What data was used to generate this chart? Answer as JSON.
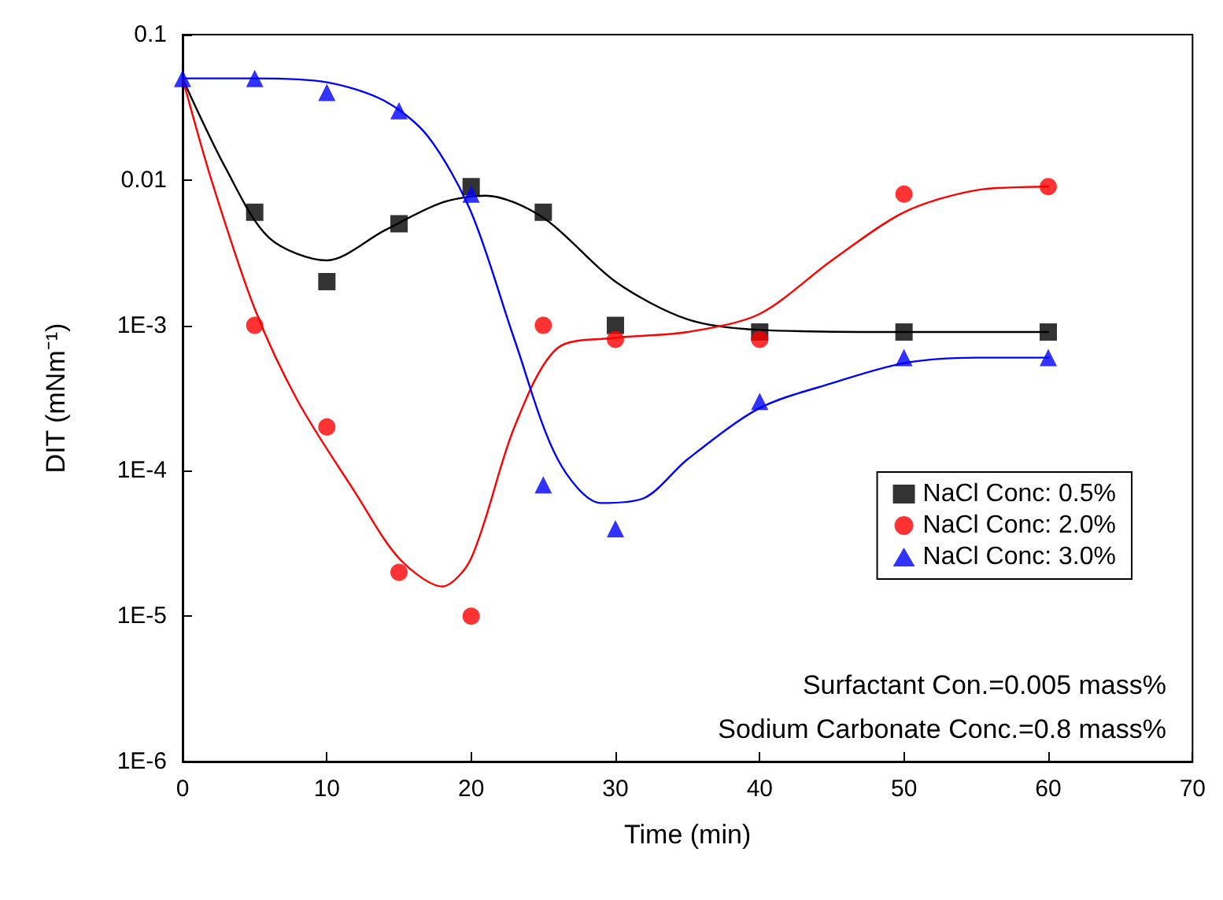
{
  "chart_data": {
    "type": "scatter",
    "xlabel": "Time (min)",
    "ylabel": "DIT (mNm⁻¹)",
    "log": "y",
    "xlim": [
      0,
      70
    ],
    "xticks": [
      0,
      10,
      20,
      30,
      40,
      50,
      60,
      70
    ],
    "ylim": [
      1e-06,
      0.1
    ],
    "yticks": [
      {
        "value": 1e-06,
        "label": "1E-6"
      },
      {
        "value": 1e-05,
        "label": "1E-5"
      },
      {
        "value": 0.0001,
        "label": "1E-4"
      },
      {
        "value": 0.001,
        "label": "1E-3"
      },
      {
        "value": 0.01,
        "label": "0.01"
      },
      {
        "value": 0.1,
        "label": "0.1"
      }
    ],
    "grid": false,
    "legend": "right",
    "x": [
      0,
      5,
      10,
      15,
      20,
      25,
      30,
      40,
      50,
      60
    ],
    "series": [
      {
        "name": "NaCl Conc: 0.5%",
        "color": "#000000",
        "marker": "square",
        "values": [
          null,
          0.006,
          0.002,
          0.005,
          0.009,
          0.006,
          0.001,
          0.0009,
          0.0009,
          0.0009
        ]
      },
      {
        "name": "NaCl Conc: 2.0%",
        "color": "#ff0000",
        "marker": "circle",
        "values": [
          null,
          0.001,
          0.0002,
          2e-05,
          1e-05,
          0.001,
          0.0008,
          0.0008,
          0.008,
          0.009
        ]
      },
      {
        "name": "NaCl Conc: 3.0%",
        "color": "#0000ff",
        "marker": "triangle",
        "values": [
          0.05,
          0.05,
          0.04,
          0.03,
          0.008,
          8e-05,
          4e-05,
          0.0003,
          0.0006,
          0.0006
        ]
      },
      {
        "type": "line",
        "color": "#000000",
        "marker": "none",
        "line_style": "solid",
        "x": [
          0,
          3,
          6,
          10,
          14,
          18,
          21,
          25,
          30,
          35,
          40,
          50,
          60
        ],
        "values": [
          0.05,
          0.012,
          0.004,
          0.0028,
          0.0045,
          0.007,
          0.0078,
          0.0055,
          0.002,
          0.0011,
          0.00093,
          0.0009,
          0.0009
        ]
      },
      {
        "type": "line",
        "color": "#ff0000",
        "marker": "none",
        "line_style": "solid",
        "x": [
          0,
          2,
          5,
          8,
          12,
          15,
          18,
          20,
          23,
          26,
          30,
          35,
          40,
          45,
          50,
          55,
          60
        ],
        "values": [
          0.05,
          0.01,
          0.0013,
          0.0003,
          7e-05,
          2.5e-05,
          1.6e-05,
          2.5e-05,
          0.0002,
          0.0007,
          0.00082,
          0.0009,
          0.0012,
          0.0028,
          0.006,
          0.0085,
          0.009
        ]
      },
      {
        "type": "line",
        "color": "#0000ff",
        "marker": "none",
        "line_style": "solid",
        "x": [
          0,
          5,
          10,
          14,
          17,
          20,
          23,
          26,
          29,
          32,
          35,
          40,
          45,
          50,
          55,
          60
        ],
        "values": [
          0.05,
          0.05,
          0.047,
          0.035,
          0.02,
          0.006,
          0.0008,
          0.00012,
          6e-05,
          6.5e-05,
          0.00012,
          0.00027,
          0.0004,
          0.00055,
          0.0006,
          0.0006
        ]
      }
    ],
    "annotations": [
      "Surfactant Con.=0.005 mass%",
      "Sodium Carbonate Conc.=0.8 mass%"
    ]
  }
}
